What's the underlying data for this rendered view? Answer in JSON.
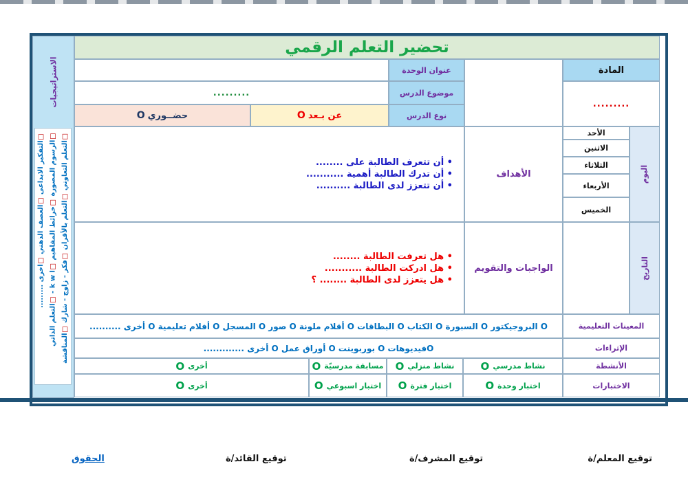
{
  "title": "تحضير التعلم الرقمي",
  "ui": {
    "circle": "O",
    "checkbox": "□"
  },
  "strategies": {
    "header": "الاستراتيجيات",
    "items": [
      "التعلم التعاوني",
      "التعلم بالأقران",
      "فكر - زاوج - شارك",
      "المناقشة",
      "الرسوم المصورة",
      "خرائط المفاهيم",
      "k w l -",
      "التعلم الذاتي",
      "التفكير الابداعى",
      "العصف الذهني",
      "اخرى ........."
    ]
  },
  "header": {
    "subject_label": "المادة",
    "subject_value": ".........",
    "unit_label": "عنوان الوحدة",
    "topic_label": "موضوع الدرس",
    "topic_value": ".........",
    "type_label": "نوع الدرس",
    "type_remote": "عن بـعد",
    "type_inperson": "حضــوري"
  },
  "day": {
    "label": "اليوم",
    "days": [
      "الأحد",
      "الاثنين",
      "الثلاثاء",
      "الأربعاء",
      "الخميس"
    ]
  },
  "date": {
    "label": "التاريخ"
  },
  "objectives": {
    "label": "الأهداف",
    "items": [
      "أن تتعرف الطالبة على ........",
      "أن تدرك الطالبة أهمية ...........",
      "أن تتعزز لدى الطالبة  .........."
    ]
  },
  "evaluation": {
    "label": "الواجبات والتقويم",
    "items": [
      "هل تعرفت الطالبة ........",
      "هل ادركت الطالبة ...........",
      "هل يتعزز لدى الطالبة  ........ ؟"
    ]
  },
  "aids": {
    "label": "المعينات التعليمية",
    "value": "O البروجيكتور  O السبورة O الكتاب O البطاقات O أقلام ملونة O صور O المسجل O أفلام تعليمية O أخرى .........."
  },
  "enrichments": {
    "label": "الإثراءات",
    "value": "Oفيديوهات  O بوربوينت  O أوراق عمل O أخرى ............."
  },
  "activities": {
    "label": "الأنشطة",
    "items": [
      "نشاط مدرسي",
      "نشاط منزلي",
      "مسابقة مدرسيّة",
      "أخرى"
    ]
  },
  "tests": {
    "label": "الاختبارات",
    "items": [
      "اختبار وحدة",
      "اختبار فترة",
      "اختبار اسبوعي",
      "أخرى"
    ]
  },
  "footer": {
    "teacher": "توقيع المعلم/ة",
    "supervisor": "توقيع المشرف/ة",
    "leader": "توقيع القائد/ة",
    "rights": "الحقوق"
  }
}
